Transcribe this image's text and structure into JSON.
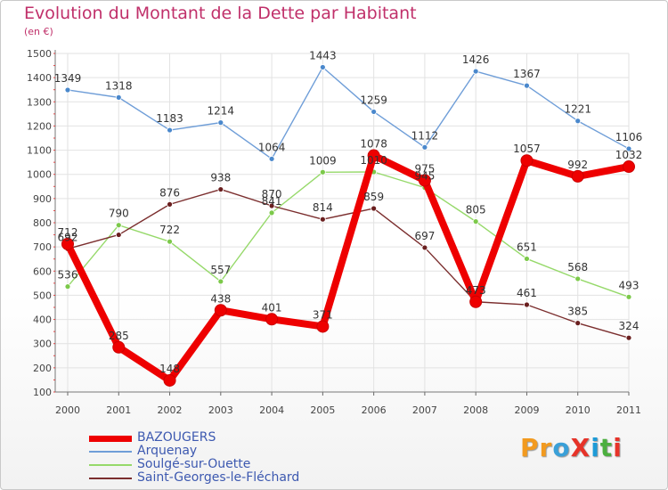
{
  "header": {
    "title": "Evolution du Montant de la Dette par Habitant",
    "subtitle": "(en €)"
  },
  "logo": {
    "text": "ProXiti",
    "letters": [
      "P",
      "r",
      "o",
      "X",
      "i",
      "t",
      "i"
    ],
    "colors": [
      "#f29a1f",
      "#f29a1f",
      "#3aa0d8",
      "#e63329",
      "#1d9bd7",
      "#4caf3f",
      "#e63329"
    ]
  },
  "chart_data": {
    "type": "line",
    "title": "Evolution du Montant de la Dette par Habitant",
    "subtitle": "(en €)",
    "ylim": [
      100,
      1500
    ],
    "yticks": [
      "100",
      "200",
      "300",
      "400",
      "500",
      "600",
      "700",
      "800",
      "900",
      "1000",
      "1100",
      "1200",
      "1300",
      "1400",
      "1500"
    ],
    "x": [
      "2000",
      "2001",
      "2002",
      "2003",
      "2004",
      "2005",
      "2006",
      "2007",
      "2008",
      "2009",
      "2010",
      "2011"
    ],
    "grid": true,
    "legend_position": "bottom-left",
    "series": [
      {
        "name": "Arquenay",
        "color": "#6f9ed8",
        "width": 1.4,
        "marker": "#4a88cc",
        "values": [
          1349,
          1318,
          1183,
          1214,
          1064,
          1443,
          1259,
          1112,
          1426,
          1367,
          1221,
          1106
        ],
        "labels": [
          "1349",
          "1318",
          "1183",
          "1214",
          "1064",
          "1443",
          "1259",
          "1112",
          "1426",
          "1367",
          "1221",
          "1106"
        ]
      },
      {
        "name": "Soulgé-sur-Ouette",
        "color": "#96d96a",
        "width": 1.4,
        "marker": "#7cc94a",
        "values": [
          536,
          790,
          722,
          557,
          841,
          1009,
          1010,
          945,
          805,
          651,
          568,
          493
        ],
        "labels": [
          "536",
          "790",
          "722",
          "557",
          "841",
          "1009",
          "1010",
          "945",
          "805",
          "651",
          "568",
          "493"
        ]
      },
      {
        "name": "Saint-Georges-le-Fléchard",
        "color": "#7b2e2e",
        "width": 1.4,
        "marker": "#6a1f1f",
        "values": [
          692,
          750,
          876,
          938,
          870,
          814,
          859,
          697,
          473,
          461,
          385,
          324
        ],
        "labels": [
          "692",
          "",
          "876",
          "938",
          "870",
          "814",
          "859",
          "697",
          "473",
          "461",
          "385",
          "324"
        ]
      },
      {
        "name": "BAZOUGERS",
        "color": "#ee0000",
        "width": 8,
        "marker": "#ee0000",
        "values": [
          712,
          285,
          148,
          438,
          401,
          371,
          1078,
          975,
          473,
          1057,
          992,
          1032
        ],
        "labels": [
          "712",
          "285",
          "148",
          "438",
          "401",
          "371",
          "1078",
          "975",
          "473",
          "1057",
          "992",
          "1032"
        ]
      }
    ],
    "legend_order": [
      "BAZOUGERS",
      "Arquenay",
      "Soulgé-sur-Ouette",
      "Saint-Georges-le-Fléchard"
    ]
  }
}
